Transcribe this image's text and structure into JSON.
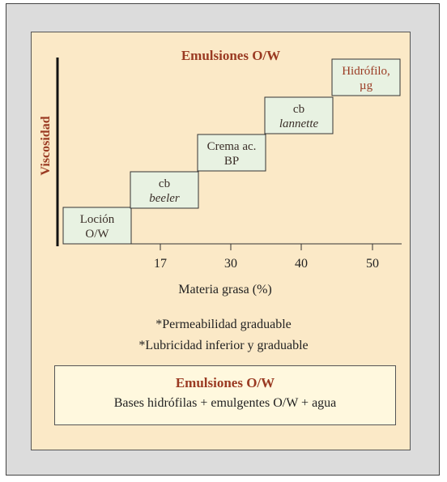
{
  "diagram": {
    "title": "Emulsiones O/W",
    "y_axis_label": "Viscosidad",
    "x_axis_label": "Materia grasa (%)",
    "x_ticks": [
      "17",
      "30",
      "40",
      "50"
    ],
    "steps": [
      {
        "line1": "Loción",
        "line2": "O/W",
        "line2_italic": false,
        "line1_red": false,
        "line2_red": false
      },
      {
        "line1": "cb",
        "line2": "beeler",
        "line2_italic": true,
        "line1_red": false,
        "line2_red": false
      },
      {
        "line1": "Crema ac.",
        "line2": "BP",
        "line2_italic": false,
        "line1_red": false,
        "line2_red": false
      },
      {
        "line1": "cb",
        "line2": "lannette",
        "line2_italic": true,
        "line1_red": false,
        "line2_red": false
      },
      {
        "line1": "Hidrófilo,",
        "line2": "µg",
        "line2_italic": false,
        "line1_red": true,
        "line2_red": true
      }
    ],
    "colors": {
      "box_fill": "#e8f2e2",
      "accent": "#9a3a22",
      "panel": "#fbe9c7"
    }
  },
  "notes": [
    "*Permeabilidad graduable",
    "*Lubricidad inferior y graduable"
  ],
  "summary": {
    "title": "Emulsiones O/W",
    "body": "Bases hidrófilas + emulgentes O/W + agua"
  }
}
